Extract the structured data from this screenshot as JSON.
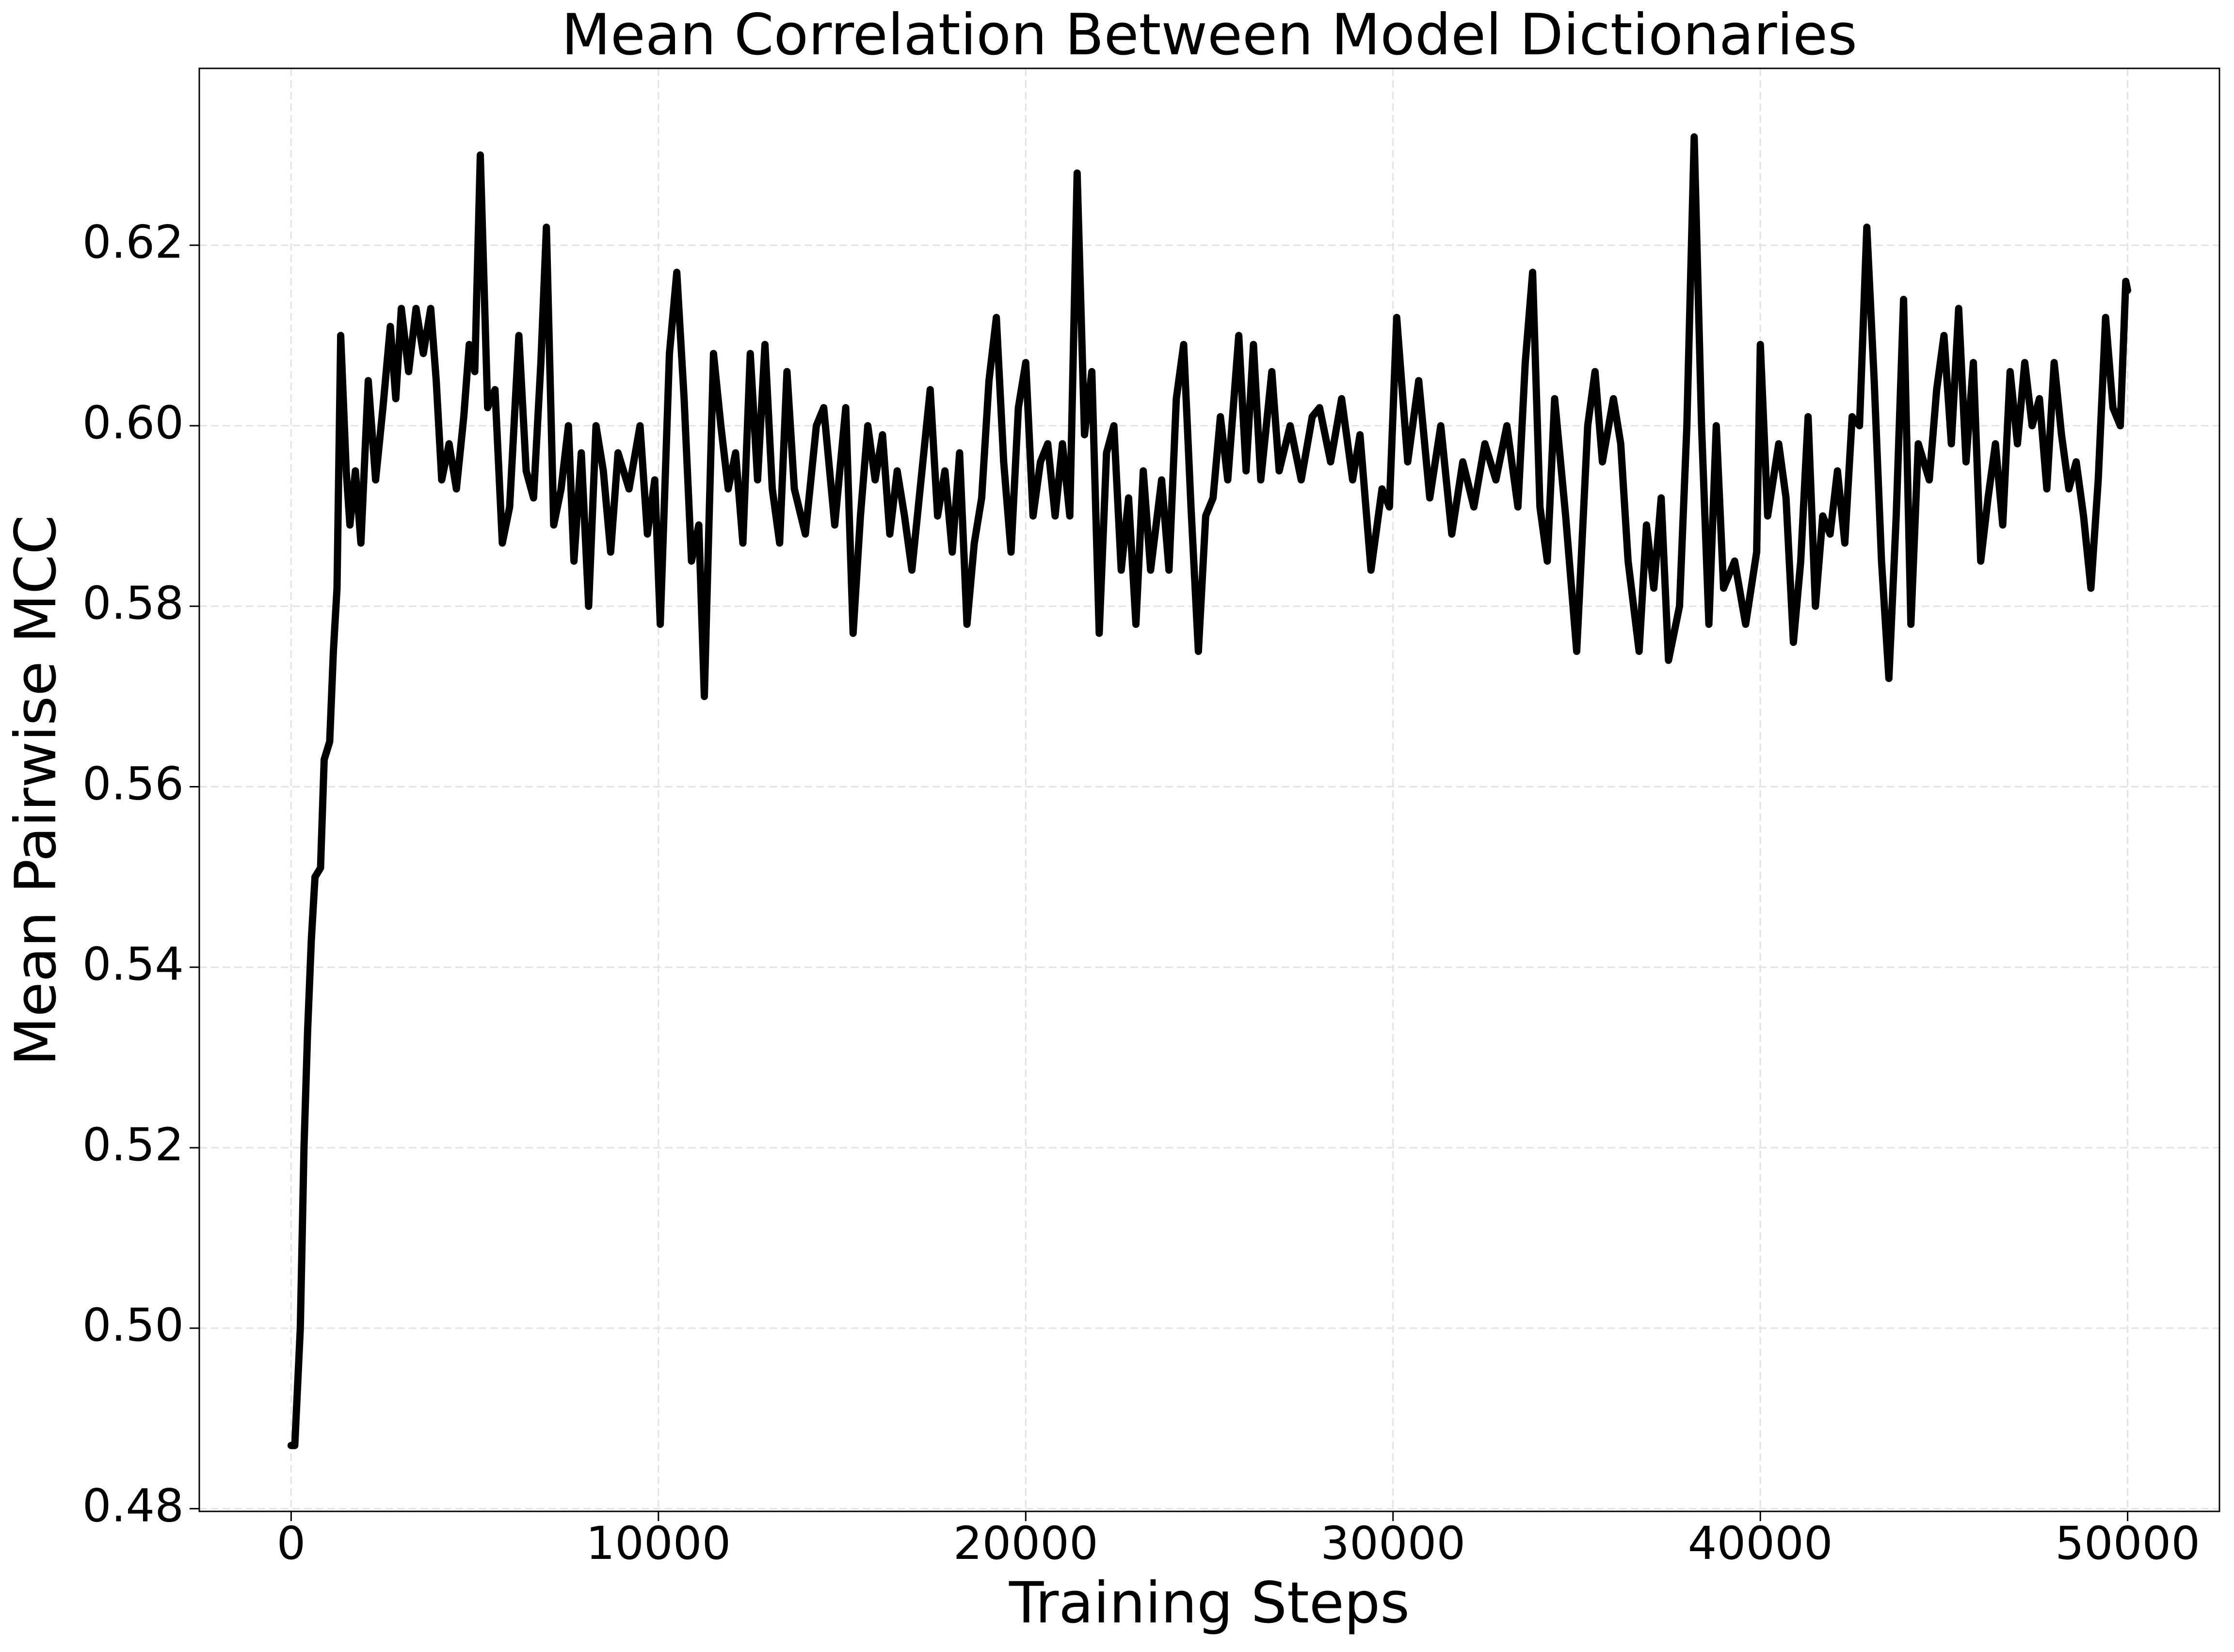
{
  "chart_data": {
    "type": "line",
    "title": "Mean Correlation Between Model Dictionaries",
    "xlabel": "Training Steps",
    "ylabel": "Mean Pairwise MCC",
    "color": "#000000",
    "grid": true,
    "xlim": [
      -2500,
      52500
    ],
    "ylim": [
      0.4797,
      0.6396
    ],
    "xticks": [
      0,
      10000,
      20000,
      30000,
      40000,
      50000
    ],
    "yticks": [
      0.48,
      {
        "value": 0.5,
        "label": "0.50"
      },
      0.52,
      0.54,
      0.56,
      0.58,
      {
        "value": 0.6,
        "label": "0.60"
      },
      0.62
    ],
    "x": [
      0,
      100,
      250,
      350,
      450,
      550,
      650,
      800,
      900,
      1050,
      1150,
      1250,
      1350,
      1500,
      1600,
      1750,
      1900,
      2100,
      2300,
      2500,
      2700,
      2850,
      3000,
      3200,
      3400,
      3600,
      3800,
      3950,
      4100,
      4300,
      4500,
      4700,
      4850,
      5000,
      5150,
      5350,
      5550,
      5750,
      5950,
      6200,
      6400,
      6600,
      6800,
      6950,
      7150,
      7350,
      7550,
      7700,
      7900,
      8100,
      8300,
      8500,
      8700,
      8900,
      9200,
      9500,
      9700,
      9900,
      10050,
      10300,
      10500,
      10700,
      10900,
      11100,
      11250,
      11500,
      11700,
      11900,
      12100,
      12300,
      12500,
      12700,
      12900,
      13100,
      13300,
      13500,
      13700,
      14000,
      14300,
      14500,
      14800,
      15100,
      15300,
      15500,
      15700,
      15900,
      16100,
      16300,
      16500,
      16700,
      16900,
      17100,
      17400,
      17600,
      17800,
      18000,
      18200,
      18400,
      18600,
      18800,
      19000,
      19200,
      19400,
      19600,
      19800,
      20000,
      20200,
      20400,
      20600,
      20800,
      21000,
      21200,
      21400,
      21600,
      21800,
      22000,
      22200,
      22400,
      22600,
      22800,
      23000,
      23200,
      23400,
      23700,
      23900,
      24100,
      24300,
      24500,
      24700,
      24900,
      25100,
      25300,
      25500,
      25800,
      26000,
      26200,
      26400,
      26700,
      26900,
      27200,
      27500,
      27800,
      28000,
      28300,
      28600,
      28900,
      29100,
      29400,
      29700,
      29900,
      30100,
      30400,
      30700,
      31000,
      31300,
      31600,
      31900,
      32200,
      32500,
      32800,
      33100,
      33400,
      33600,
      33800,
      34000,
      34200,
      34400,
      34700,
      35000,
      35300,
      35500,
      35700,
      36000,
      36200,
      36400,
      36700,
      36900,
      37100,
      37300,
      37500,
      37800,
      38000,
      38200,
      38400,
      38600,
      38800,
      39000,
      39300,
      39600,
      39900,
      40000,
      40200,
      40500,
      40700,
      40900,
      41100,
      41300,
      41500,
      41700,
      41900,
      42100,
      42300,
      42500,
      42700,
      42900,
      43100,
      43300,
      43500,
      43700,
      43900,
      44100,
      44300,
      44600,
      44800,
      45000,
      45200,
      45400,
      45600,
      45800,
      46000,
      46200,
      46400,
      46600,
      46800,
      47000,
      47200,
      47400,
      47600,
      47800,
      48000,
      48200,
      48400,
      48600,
      48800,
      49000,
      49200,
      49400,
      49600,
      49800,
      49950,
      50000
    ],
    "values": [
      0.487,
      0.487,
      0.5,
      0.52,
      0.533,
      0.543,
      0.55,
      0.551,
      0.563,
      0.565,
      0.575,
      0.582,
      0.61,
      0.595,
      0.589,
      0.595,
      0.587,
      0.605,
      0.594,
      0.602,
      0.611,
      0.603,
      0.613,
      0.606,
      0.613,
      0.608,
      0.613,
      0.605,
      0.594,
      0.598,
      0.593,
      0.601,
      0.609,
      0.606,
      0.63,
      0.602,
      0.604,
      0.587,
      0.591,
      0.61,
      0.595,
      0.592,
      0.607,
      0.622,
      0.589,
      0.593,
      0.6,
      0.585,
      0.597,
      0.58,
      0.6,
      0.595,
      0.586,
      0.597,
      0.593,
      0.6,
      0.588,
      0.594,
      0.578,
      0.608,
      0.617,
      0.603,
      0.585,
      0.589,
      0.57,
      0.608,
      0.6,
      0.593,
      0.597,
      0.587,
      0.608,
      0.594,
      0.609,
      0.593,
      0.587,
      0.606,
      0.593,
      0.588,
      0.6,
      0.602,
      0.589,
      0.602,
      0.577,
      0.59,
      0.6,
      0.594,
      0.599,
      0.588,
      0.595,
      0.59,
      0.584,
      0.592,
      0.604,
      0.59,
      0.595,
      0.586,
      0.597,
      0.578,
      0.587,
      0.592,
      0.605,
      0.612,
      0.596,
      0.586,
      0.602,
      0.607,
      0.59,
      0.596,
      0.598,
      0.59,
      0.598,
      0.59,
      0.628,
      0.599,
      0.606,
      0.577,
      0.597,
      0.6,
      0.584,
      0.592,
      0.578,
      0.595,
      0.584,
      0.594,
      0.584,
      0.603,
      0.609,
      0.591,
      0.575,
      0.59,
      0.592,
      0.601,
      0.594,
      0.61,
      0.595,
      0.609,
      0.594,
      0.606,
      0.595,
      0.6,
      0.594,
      0.601,
      0.602,
      0.596,
      0.603,
      0.594,
      0.599,
      0.584,
      0.593,
      0.591,
      0.612,
      0.596,
      0.605,
      0.592,
      0.6,
      0.588,
      0.596,
      0.591,
      0.598,
      0.594,
      0.6,
      0.591,
      0.607,
      0.617,
      0.591,
      0.585,
      0.603,
      0.59,
      0.575,
      0.6,
      0.606,
      0.596,
      0.603,
      0.598,
      0.585,
      0.575,
      0.589,
      0.582,
      0.592,
      0.574,
      0.58,
      0.6,
      0.632,
      0.6,
      0.578,
      0.6,
      0.582,
      0.585,
      0.578,
      0.586,
      0.609,
      0.59,
      0.598,
      0.592,
      0.576,
      0.585,
      0.601,
      0.58,
      0.59,
      0.588,
      0.595,
      0.587,
      0.601,
      0.6,
      0.622,
      0.605,
      0.585,
      0.572,
      0.59,
      0.614,
      0.578,
      0.598,
      0.594,
      0.604,
      0.61,
      0.598,
      0.613,
      0.596,
      0.607,
      0.585,
      0.592,
      0.598,
      0.589,
      0.606,
      0.598,
      0.607,
      0.6,
      0.603,
      0.593,
      0.607,
      0.599,
      0.593,
      0.596,
      0.59,
      0.582,
      0.594,
      0.612,
      0.602,
      0.6,
      0.616,
      0.615
    ]
  }
}
